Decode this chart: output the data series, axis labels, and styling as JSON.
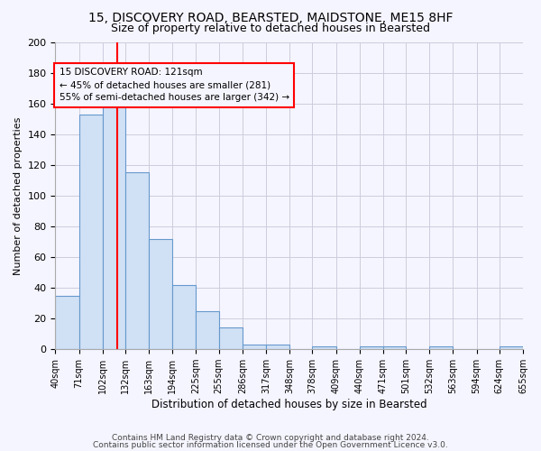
{
  "title1": "15, DISCOVERY ROAD, BEARSTED, MAIDSTONE, ME15 8HF",
  "title2": "Size of property relative to detached houses in Bearsted",
  "xlabel": "Distribution of detached houses by size in Bearsted",
  "ylabel": "Number of detached properties",
  "bin_edges": [
    40,
    71,
    102,
    132,
    163,
    194,
    225,
    255,
    286,
    317,
    348,
    378,
    409,
    440,
    471,
    501,
    532,
    563,
    594,
    624,
    655
  ],
  "bar_heights": [
    35,
    153,
    163,
    115,
    72,
    42,
    25,
    14,
    3,
    3,
    0,
    2,
    0,
    2,
    2,
    0,
    2,
    0,
    0,
    2
  ],
  "bar_color": "#d0e0f5",
  "bar_edge_color": "#6699cc",
  "property_sqm": 121,
  "property_line_color": "red",
  "ylim": [
    0,
    200
  ],
  "yticks": [
    0,
    20,
    40,
    60,
    80,
    100,
    120,
    140,
    160,
    180,
    200
  ],
  "annotation_line1": "15 DISCOVERY ROAD: 121sqm",
  "annotation_line2": "← 45% of detached houses are smaller (281)",
  "annotation_line3": "55% of semi-detached houses are larger (342) →",
  "annotation_box_color": "red",
  "footnote1": "Contains HM Land Registry data © Crown copyright and database right 2024.",
  "footnote2": "Contains public sector information licensed under the Open Government Licence v3.0.",
  "bg_color": "#f5f5ff",
  "grid_color": "#ccccdd",
  "title1_fontsize": 10,
  "title2_fontsize": 9,
  "ylabel_fontsize": 8,
  "xlabel_fontsize": 8.5,
  "ytick_fontsize": 8,
  "xtick_fontsize": 7,
  "footnote_fontsize": 6.5,
  "ann_fontsize": 7.5
}
